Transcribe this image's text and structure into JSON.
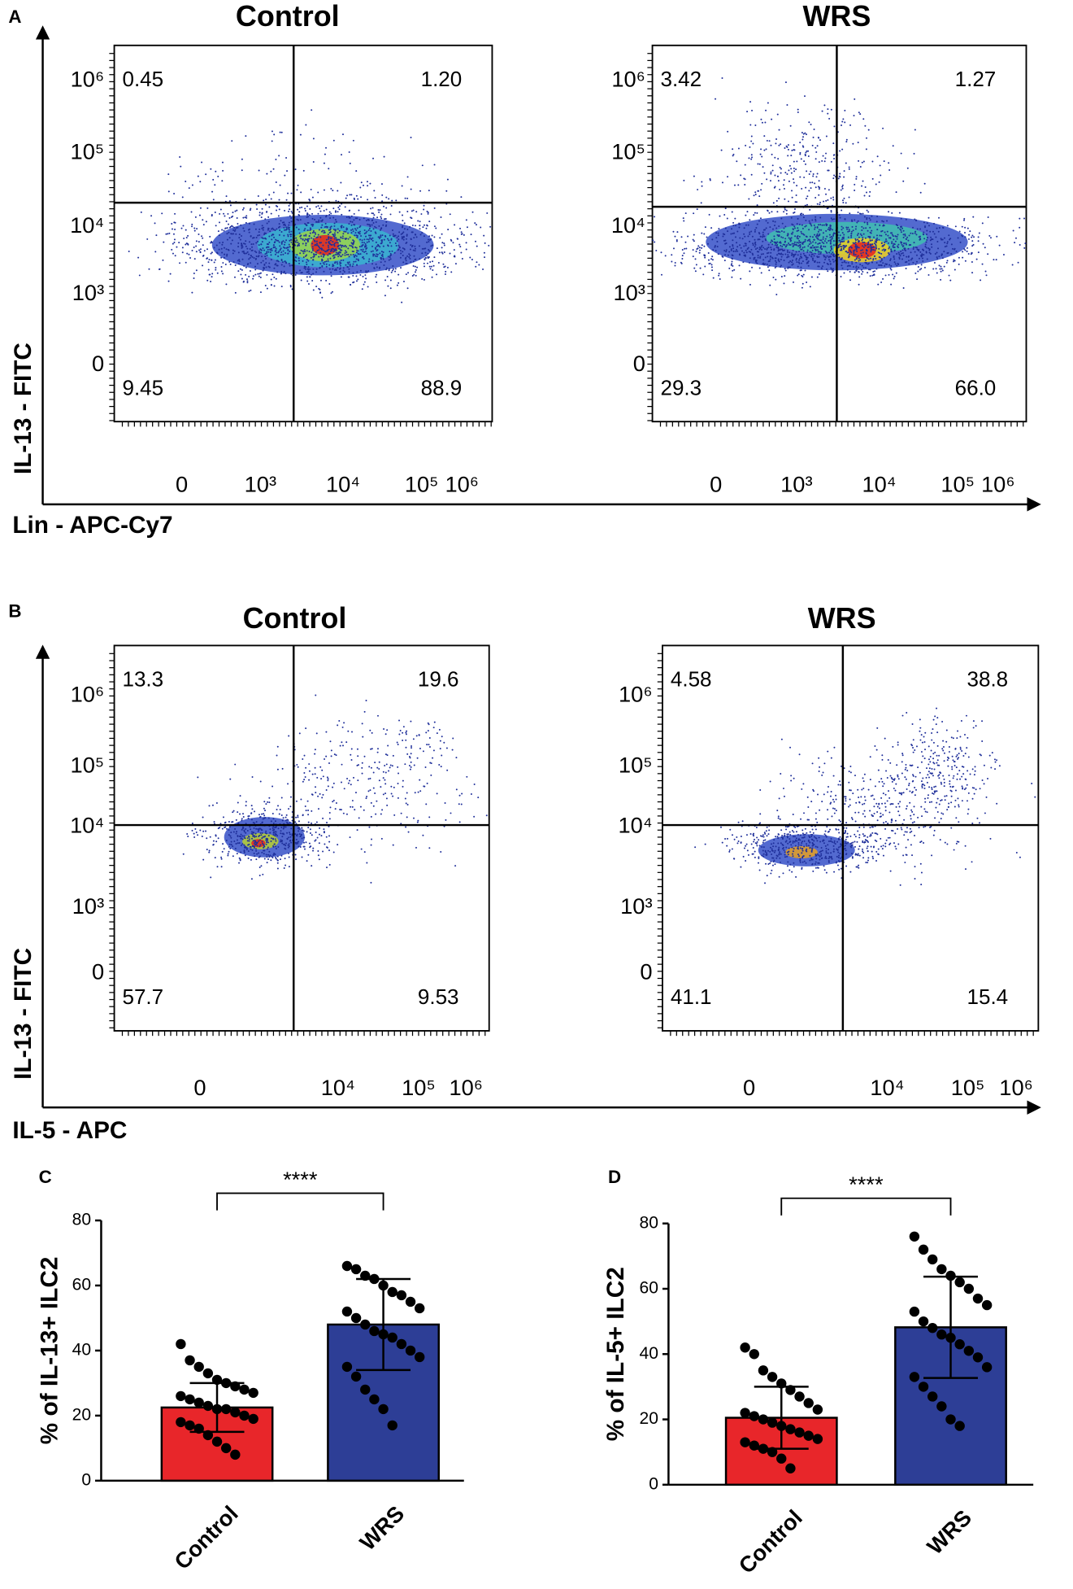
{
  "panel_a": {
    "letter": "A",
    "y_label": "IL-13 - FITC",
    "x_label": "Lin - APC-Cy7"
  },
  "panel_b": {
    "letter": "B",
    "y_label": "IL-13 - FITC",
    "x_label": "IL-5 - APC"
  },
  "panel_c": {
    "letter": "C"
  },
  "panel_d": {
    "letter": "D"
  },
  "chart_data": [
    {
      "type": "flow",
      "title": "Control",
      "quadrant_labels": [
        "0.45",
        "1.20",
        "9.45",
        "88.9"
      ],
      "y_tick_labels": [
        "10⁶",
        "10⁵",
        "10⁴",
        "10³",
        "0"
      ],
      "x_tick_labels": [
        "0",
        "10³",
        "10⁴",
        "10⁵",
        "10⁶"
      ]
    },
    {
      "type": "flow",
      "title": "WRS",
      "quadrant_labels": [
        "3.42",
        "1.27",
        "29.3",
        "66.0"
      ],
      "y_tick_labels": [
        "10⁶",
        "10⁵",
        "10⁴",
        "10³",
        "0"
      ],
      "x_tick_labels": [
        "0",
        "10³",
        "10⁴",
        "10⁵",
        "10⁶"
      ]
    },
    {
      "type": "flow",
      "title": "Control",
      "quadrant_labels": [
        "13.3",
        "19.6",
        "57.7",
        "9.53"
      ],
      "y_tick_labels": [
        "10⁶",
        "10⁵",
        "10⁴",
        "10³",
        "0"
      ],
      "x_tick_labels": [
        "0",
        "10⁴",
        "10⁵",
        "10⁶"
      ]
    },
    {
      "type": "flow",
      "title": "WRS",
      "quadrant_labels": [
        "4.58",
        "38.8",
        "41.1",
        "15.4"
      ],
      "y_tick_labels": [
        "10⁶",
        "10⁵",
        "10⁴",
        "10³",
        "0"
      ],
      "x_tick_labels": [
        "0",
        "10⁴",
        "10⁵",
        "10⁶"
      ]
    },
    {
      "type": "bar",
      "ylabel": "% of IL-13+ ILC2",
      "categories": [
        "Control",
        "WRS"
      ],
      "values": [
        22.5,
        48
      ],
      "errors": [
        7.5,
        14
      ],
      "colors": [
        "#e8262a",
        "#2d3e96"
      ],
      "points": [
        [
          42,
          37,
          35,
          33,
          31,
          30,
          29,
          28,
          27,
          26,
          25,
          24,
          23,
          22,
          22,
          21,
          20,
          19,
          18,
          17,
          16,
          14,
          12,
          10,
          8
        ],
        [
          66,
          65,
          63,
          62,
          60,
          58,
          57,
          55,
          53,
          52,
          50,
          48,
          46,
          45,
          44,
          42,
          40,
          38,
          35,
          32,
          28,
          25,
          22,
          17
        ]
      ],
      "ylim": [
        0,
        80
      ],
      "yticks": [
        0,
        20,
        40,
        60,
        80
      ],
      "annotation": "****"
    },
    {
      "type": "bar",
      "ylabel": "% of IL-5+ ILC2",
      "categories": [
        "Control",
        "WRS"
      ],
      "values": [
        20.5,
        48.2
      ],
      "errors": [
        9.5,
        15.5
      ],
      "colors": [
        "#e8262a",
        "#2d3e96"
      ],
      "points": [
        [
          42,
          40,
          35,
          33,
          31,
          29,
          27,
          25,
          23,
          22,
          21,
          20,
          19,
          18,
          17,
          16,
          15,
          14,
          13,
          12,
          11,
          10,
          8,
          5
        ],
        [
          76,
          72,
          69,
          66,
          64,
          62,
          60,
          57,
          55,
          53,
          50,
          48,
          46,
          45,
          43,
          41,
          39,
          36,
          33,
          30,
          27,
          24,
          20,
          18
        ]
      ],
      "ylim": [
        0,
        80
      ],
      "yticks": [
        0,
        20,
        40,
        60,
        80
      ],
      "annotation": "****"
    }
  ]
}
